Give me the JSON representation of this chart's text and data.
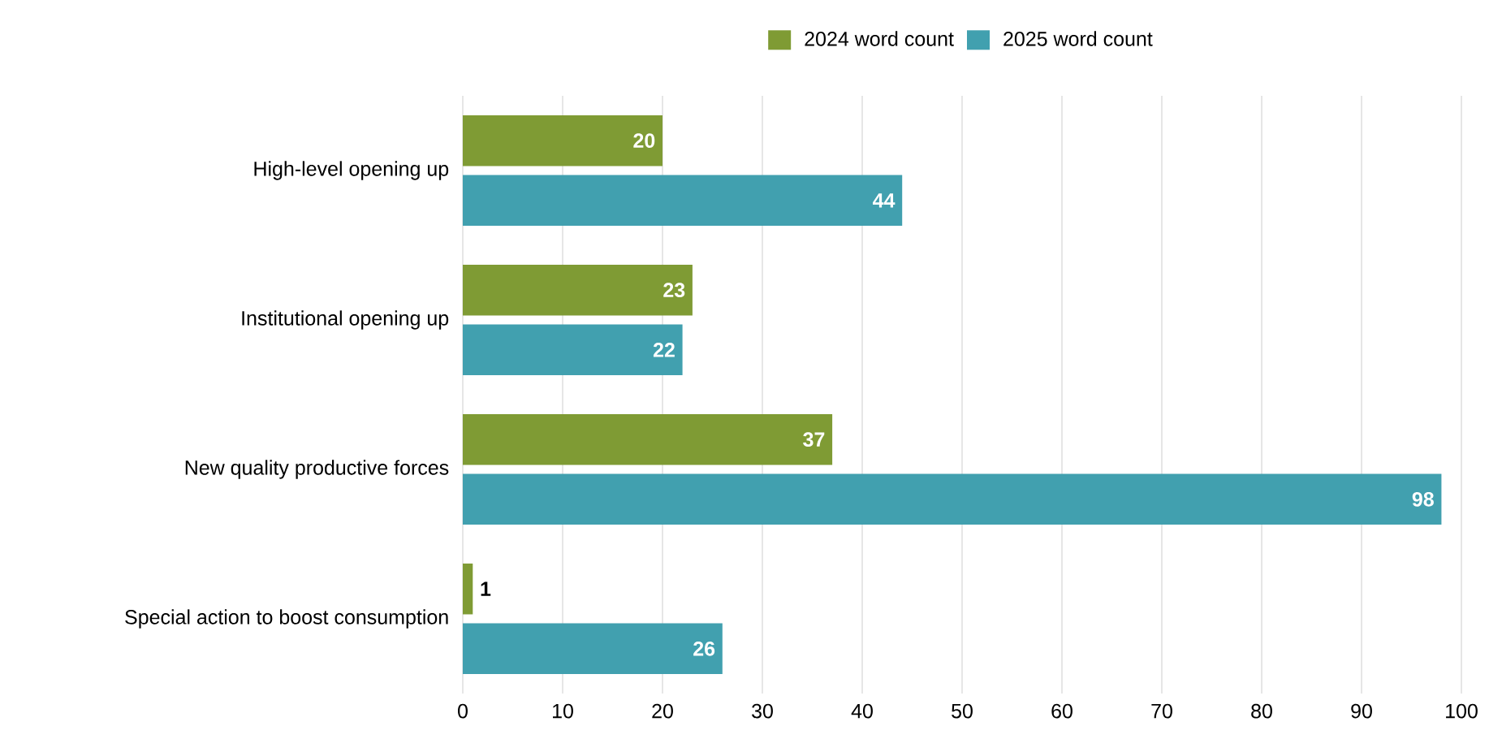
{
  "chart_data": {
    "type": "bar",
    "orientation": "horizontal",
    "categories": [
      "High-level opening up",
      "Institutional opening up",
      "New quality productive forces",
      "Special action to boost consumption"
    ],
    "series": [
      {
        "name": "2024 word count",
        "color": "#7f9b34",
        "values": [
          20,
          23,
          37,
          1
        ]
      },
      {
        "name": "2025 word count",
        "color": "#41a0af",
        "values": [
          44,
          22,
          98,
          26
        ]
      }
    ],
    "xlim": [
      0,
      100
    ],
    "xticks": [
      0,
      10,
      20,
      30,
      40,
      50,
      60,
      70,
      80,
      90,
      100
    ],
    "grid": "x",
    "legend": "top",
    "data_labels": true
  }
}
